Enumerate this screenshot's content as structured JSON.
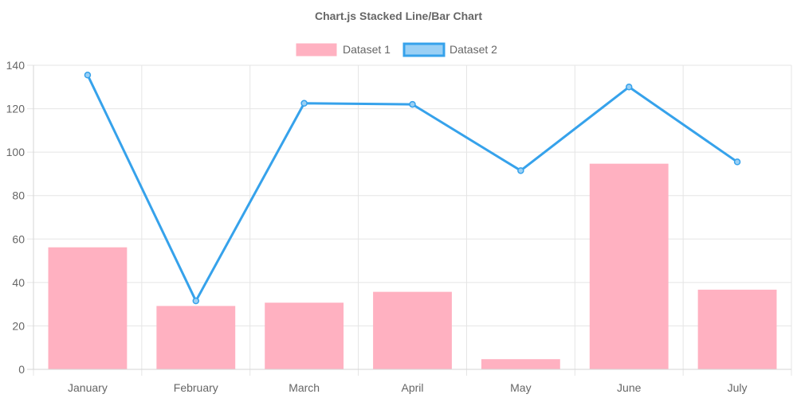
{
  "chart_data": {
    "type": "bar",
    "title": "Chart.js Stacked Line/Bar Chart",
    "categories": [
      "January",
      "February",
      "March",
      "April",
      "May",
      "June",
      "July"
    ],
    "series": [
      {
        "name": "Dataset 1",
        "type": "bar",
        "values": [
          56,
          29,
          30.5,
          35.5,
          4.5,
          94.5,
          36.5
        ]
      },
      {
        "name": "Dataset 2",
        "type": "line",
        "values": [
          135.5,
          31.5,
          122.5,
          122,
          91.5,
          130,
          95.5
        ]
      }
    ],
    "ylim": [
      0,
      140
    ],
    "yticks": [
      0,
      20,
      40,
      60,
      80,
      100,
      120,
      140
    ],
    "grid": true,
    "legend_position": "top",
    "colors": {
      "dataset1_fill": "#ffb1c1",
      "dataset1_border": "#ff6384",
      "dataset2_line": "#36a2eb",
      "dataset2_fill": "#9ad0f5",
      "grid": "#e5e5e5",
      "text": "#666666"
    }
  }
}
